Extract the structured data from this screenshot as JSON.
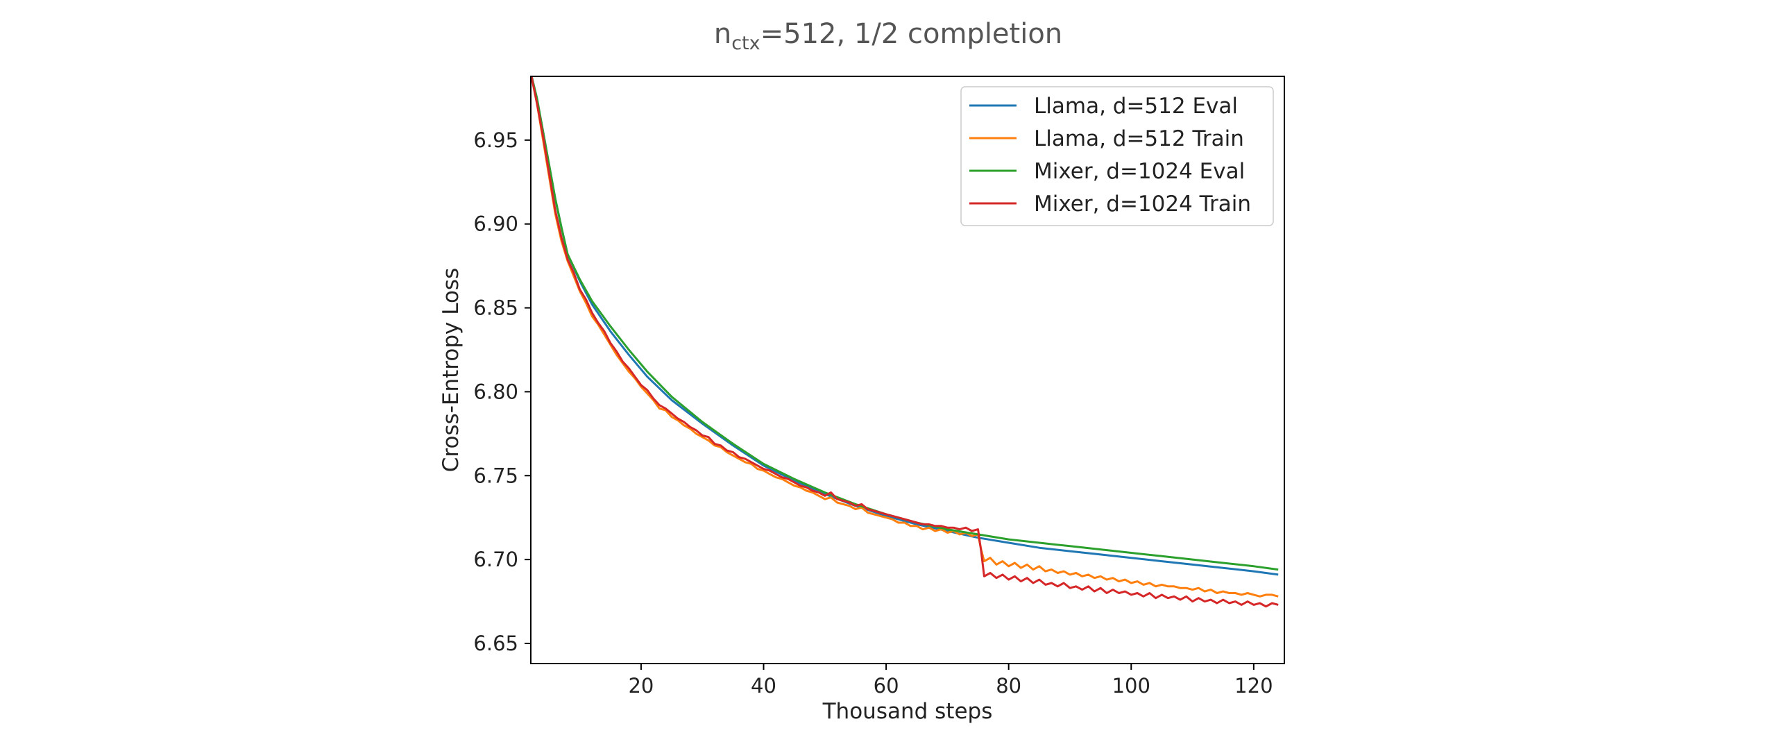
{
  "chart_data": {
    "type": "line",
    "title": {
      "base": "n",
      "subscript": "ctx",
      "rest": "=512, 1/2 completion"
    },
    "xlabel": "Thousand steps",
    "ylabel": "Cross-Entropy Loss",
    "xlim": [
      2,
      125
    ],
    "ylim": [
      6.638,
      6.988
    ],
    "xticks": [
      20,
      40,
      60,
      80,
      100,
      120
    ],
    "yticks": [
      6.65,
      6.7,
      6.75,
      6.8,
      6.85,
      6.9,
      6.95
    ],
    "xtick_labels": [
      "20",
      "40",
      "60",
      "80",
      "100",
      "120"
    ],
    "ytick_labels": [
      "6.65",
      "6.70",
      "6.75",
      "6.80",
      "6.85",
      "6.90",
      "6.95"
    ],
    "grid": false,
    "legend_position": "top-right",
    "series": [
      {
        "name": "Llama, d=512 Eval",
        "color": "#1f77b4",
        "x": [
          2,
          3,
          4,
          5,
          6,
          7,
          8,
          10,
          12,
          15,
          18,
          21,
          25,
          30,
          35,
          40,
          45,
          50,
          55,
          60,
          65,
          70,
          75,
          80,
          85,
          90,
          95,
          100,
          105,
          110,
          115,
          120,
          124
        ],
        "y": [
          6.99,
          6.975,
          6.955,
          6.935,
          6.915,
          6.898,
          6.882,
          6.866,
          6.852,
          6.836,
          6.822,
          6.809,
          6.795,
          6.781,
          6.768,
          6.756,
          6.747,
          6.739,
          6.732,
          6.726,
          6.721,
          6.717,
          6.713,
          6.71,
          6.707,
          6.705,
          6.703,
          6.701,
          6.699,
          6.697,
          6.695,
          6.693,
          6.691
        ]
      },
      {
        "name": "Llama, d=512 Train",
        "color": "#ff7f0e",
        "x": [
          2,
          3,
          4,
          5,
          6,
          7,
          8,
          9,
          10,
          11,
          12,
          13,
          14,
          15,
          16,
          17,
          18,
          19,
          20,
          21,
          22,
          23,
          24,
          25,
          26,
          27,
          28,
          29,
          30,
          31,
          32,
          33,
          34,
          35,
          36,
          37,
          38,
          39,
          40,
          41,
          42,
          43,
          44,
          45,
          46,
          47,
          48,
          49,
          50,
          51,
          52,
          53,
          54,
          55,
          56,
          57,
          58,
          59,
          60,
          61,
          62,
          63,
          64,
          65,
          66,
          67,
          68,
          69,
          70,
          71,
          72,
          73,
          74,
          75,
          75.5,
          76,
          77,
          78,
          79,
          80,
          81,
          82,
          83,
          84,
          85,
          86,
          87,
          88,
          89,
          90,
          91,
          92,
          93,
          94,
          95,
          96,
          97,
          98,
          99,
          100,
          101,
          102,
          103,
          104,
          105,
          106,
          107,
          108,
          109,
          110,
          111,
          112,
          113,
          114,
          115,
          116,
          117,
          118,
          119,
          120,
          121,
          122,
          123,
          124
        ],
        "y": [
          6.99,
          6.972,
          6.95,
          6.928,
          6.906,
          6.89,
          6.878,
          6.869,
          6.86,
          6.853,
          6.845,
          6.84,
          6.834,
          6.828,
          6.822,
          6.817,
          6.812,
          6.808,
          6.803,
          6.799,
          6.795,
          6.79,
          6.789,
          6.785,
          6.783,
          6.78,
          6.778,
          6.775,
          6.773,
          6.771,
          6.768,
          6.767,
          6.764,
          6.762,
          6.76,
          6.758,
          6.757,
          6.754,
          6.753,
          6.751,
          6.749,
          6.748,
          6.746,
          6.744,
          6.743,
          6.741,
          6.74,
          6.738,
          6.736,
          6.737,
          6.734,
          6.733,
          6.732,
          6.73,
          6.731,
          6.728,
          6.727,
          6.726,
          6.725,
          6.724,
          6.722,
          6.722,
          6.72,
          6.72,
          6.718,
          6.719,
          6.717,
          6.718,
          6.716,
          6.717,
          6.715,
          6.716,
          6.714,
          6.715,
          6.706,
          6.699,
          6.701,
          6.697,
          6.699,
          6.696,
          6.698,
          6.695,
          6.697,
          6.694,
          6.696,
          6.693,
          6.694,
          6.692,
          6.693,
          6.691,
          6.692,
          6.69,
          6.691,
          6.689,
          6.69,
          6.688,
          6.689,
          6.687,
          6.688,
          6.686,
          6.687,
          6.685,
          6.686,
          6.684,
          6.685,
          6.684,
          6.684,
          6.683,
          6.683,
          6.682,
          6.683,
          6.681,
          6.682,
          6.68,
          6.681,
          6.68,
          6.68,
          6.679,
          6.68,
          6.679,
          6.678,
          6.679,
          6.679,
          6.678
        ]
      },
      {
        "name": "Mixer, d=1024 Eval",
        "color": "#2ca02c",
        "x": [
          2,
          3,
          4,
          5,
          6,
          7,
          8,
          10,
          12,
          15,
          18,
          21,
          25,
          30,
          35,
          40,
          45,
          50,
          55,
          60,
          65,
          70,
          75,
          80,
          85,
          90,
          95,
          100,
          105,
          110,
          115,
          120,
          124
        ],
        "y": [
          6.99,
          6.975,
          6.955,
          6.935,
          6.915,
          6.898,
          6.882,
          6.867,
          6.854,
          6.839,
          6.825,
          6.812,
          6.797,
          6.782,
          6.769,
          6.757,
          6.748,
          6.74,
          6.733,
          6.727,
          6.722,
          6.718,
          6.715,
          6.712,
          6.71,
          6.708,
          6.706,
          6.704,
          6.702,
          6.7,
          6.698,
          6.696,
          6.694
        ]
      },
      {
        "name": "Mixer, d=1024 Train",
        "color": "#d62728",
        "x": [
          2,
          3,
          4,
          5,
          6,
          7,
          8,
          9,
          10,
          11,
          12,
          13,
          14,
          15,
          16,
          17,
          18,
          19,
          20,
          21,
          22,
          23,
          24,
          25,
          26,
          27,
          28,
          29,
          30,
          31,
          32,
          33,
          34,
          35,
          36,
          37,
          38,
          39,
          40,
          41,
          42,
          43,
          44,
          45,
          46,
          47,
          48,
          49,
          50,
          51,
          52,
          53,
          54,
          55,
          56,
          57,
          58,
          59,
          60,
          61,
          62,
          63,
          64,
          65,
          66,
          67,
          68,
          69,
          70,
          71,
          72,
          73,
          74,
          75,
          75.5,
          76,
          77,
          78,
          79,
          80,
          81,
          82,
          83,
          84,
          85,
          86,
          87,
          88,
          89,
          90,
          91,
          92,
          93,
          94,
          95,
          96,
          97,
          98,
          99,
          100,
          101,
          102,
          103,
          104,
          105,
          106,
          107,
          108,
          109,
          110,
          111,
          112,
          113,
          114,
          115,
          116,
          117,
          118,
          119,
          120,
          121,
          122,
          123,
          124
        ],
        "y": [
          6.99,
          6.972,
          6.952,
          6.93,
          6.908,
          6.892,
          6.879,
          6.871,
          6.861,
          6.855,
          6.847,
          6.841,
          6.836,
          6.829,
          6.824,
          6.818,
          6.814,
          6.809,
          6.804,
          6.801,
          6.796,
          6.792,
          6.79,
          6.787,
          6.784,
          6.782,
          6.779,
          6.777,
          6.774,
          6.773,
          6.769,
          6.768,
          6.765,
          6.764,
          6.761,
          6.76,
          6.758,
          6.756,
          6.754,
          6.753,
          6.751,
          6.749,
          6.748,
          6.746,
          6.744,
          6.743,
          6.741,
          6.74,
          6.738,
          6.74,
          6.736,
          6.735,
          6.734,
          6.732,
          6.733,
          6.73,
          6.729,
          6.728,
          6.727,
          6.726,
          6.725,
          6.724,
          6.723,
          6.722,
          6.721,
          6.721,
          6.72,
          6.72,
          6.719,
          6.719,
          6.718,
          6.719,
          6.717,
          6.718,
          6.705,
          6.69,
          6.692,
          6.689,
          6.691,
          6.688,
          6.69,
          6.687,
          6.689,
          6.686,
          6.688,
          6.685,
          6.686,
          6.684,
          6.686,
          6.683,
          6.684,
          6.682,
          6.684,
          6.681,
          6.683,
          6.68,
          6.682,
          6.68,
          6.681,
          6.679,
          6.68,
          6.678,
          6.68,
          6.677,
          6.679,
          6.677,
          6.678,
          6.676,
          6.678,
          6.675,
          6.677,
          6.675,
          6.676,
          6.674,
          6.676,
          6.674,
          6.675,
          6.673,
          6.675,
          6.673,
          6.674,
          6.672,
          6.674,
          6.673
        ]
      }
    ]
  }
}
